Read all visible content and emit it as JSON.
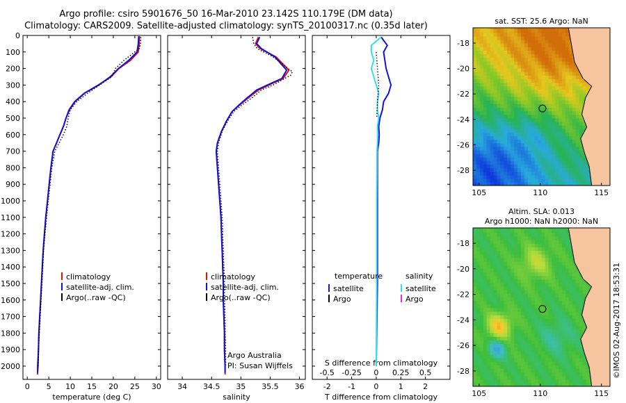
{
  "header": {
    "line1": "Argo profile: csiro 5901676_50 16-Mar-2010 23.142S 110.179E (DM data)",
    "line2": "Climatology: CARS2009. Satellite-adjusted climatology: synTS_20100317.nc (0.35d later)"
  },
  "credit": "©IMOS 02-Aug-2017 18:53:31",
  "colors": {
    "climatology": "#e01010",
    "satellite": "#1010e0",
    "argo": "#000000",
    "sal_sat": "#30e0f0",
    "sal_argo": "#e030e0"
  },
  "chart_data": [
    {
      "id": "temperature",
      "type": "line",
      "xlabel": "temperature (deg C)",
      "ylabel": "",
      "xlim": [
        -1,
        31
      ],
      "ylim": [
        0,
        2080
      ],
      "y_reversed": true,
      "xticks": [
        0,
        5,
        10,
        15,
        20,
        25,
        30
      ],
      "yticks": [
        0,
        100,
        200,
        300,
        400,
        500,
        600,
        700,
        800,
        900,
        1000,
        1100,
        1200,
        1300,
        1400,
        1500,
        1600,
        1700,
        1800,
        1900,
        2000
      ],
      "legend": [
        "climatology",
        "satellite-adj. clim.",
        "Argo(..raw -QC)"
      ],
      "series": [
        {
          "name": "climatology",
          "style": "solid",
          "color": "#e01010",
          "points": [
            [
              26.1,
              5
            ],
            [
              26,
              50
            ],
            [
              25.8,
              100
            ],
            [
              24,
              150
            ],
            [
              21.3,
              200
            ],
            [
              19.5,
              250
            ],
            [
              16.5,
              300
            ],
            [
              13.2,
              350
            ],
            [
              11,
              400
            ],
            [
              9.7,
              450
            ],
            [
              9,
              500
            ],
            [
              8.4,
              550
            ],
            [
              7.6,
              600
            ],
            [
              6.8,
              650
            ],
            [
              6,
              700
            ],
            [
              5.5,
              800
            ],
            [
              5.1,
              900
            ],
            [
              4.7,
              1000
            ],
            [
              4.3,
              1100
            ],
            [
              4,
              1200
            ],
            [
              3.7,
              1300
            ],
            [
              3.5,
              1400
            ],
            [
              3.3,
              1500
            ],
            [
              3.1,
              1600
            ],
            [
              2.9,
              1700
            ],
            [
              2.7,
              1800
            ],
            [
              2.6,
              1900
            ],
            [
              2.4,
              2000
            ],
            [
              2.4,
              2050
            ]
          ]
        },
        {
          "name": "satellite-adj. clim.",
          "style": "solid",
          "color": "#1010e0",
          "points": [
            [
              25.9,
              5
            ],
            [
              25.8,
              50
            ],
            [
              25.5,
              100
            ],
            [
              23.6,
              150
            ],
            [
              21.2,
              200
            ],
            [
              19.3,
              250
            ],
            [
              16.6,
              300
            ],
            [
              13.3,
              350
            ],
            [
              11.1,
              400
            ],
            [
              9.8,
              450
            ],
            [
              9,
              500
            ],
            [
              8.4,
              550
            ],
            [
              7.6,
              600
            ],
            [
              6.8,
              650
            ],
            [
              6,
              700
            ],
            [
              5.5,
              800
            ],
            [
              5.1,
              900
            ],
            [
              4.7,
              1000
            ],
            [
              4.3,
              1100
            ],
            [
              4,
              1200
            ],
            [
              3.7,
              1300
            ],
            [
              3.5,
              1400
            ],
            [
              3.3,
              1500
            ],
            [
              3.1,
              1600
            ],
            [
              2.9,
              1700
            ],
            [
              2.7,
              1800
            ],
            [
              2.6,
              1900
            ],
            [
              2.5,
              2000
            ],
            [
              2.4,
              2040
            ]
          ]
        },
        {
          "name": "Argo(..raw -QC)",
          "style": "dotted",
          "color": "#000000",
          "points": [
            [
              26.4,
              10
            ],
            [
              26.3,
              50
            ],
            [
              26,
              80
            ],
            [
              22.5,
              150
            ],
            [
              20.5,
              200
            ],
            [
              19.6,
              250
            ],
            [
              16.8,
              300
            ],
            [
              14,
              350
            ],
            [
              11.5,
              400
            ],
            [
              10,
              450
            ],
            [
              9.5,
              500
            ],
            [
              9.2,
              550
            ],
            [
              8.4,
              600
            ],
            [
              7.4,
              650
            ],
            [
              6.4,
              700
            ],
            [
              5.7,
              800
            ],
            [
              5.3,
              900
            ],
            [
              4.9,
              1000
            ],
            [
              4.5,
              1100
            ],
            [
              4.1,
              1200
            ],
            [
              3.8,
              1300
            ],
            [
              3.6,
              1400
            ],
            [
              3.4,
              1500
            ],
            [
              3.2,
              1600
            ],
            [
              3,
              1700
            ],
            [
              2.8,
              1800
            ],
            [
              2.6,
              1900
            ],
            [
              2.5,
              2000
            ]
          ]
        }
      ]
    },
    {
      "id": "salinity",
      "type": "line",
      "xlabel": "salinity",
      "ylabel": "",
      "xlim": [
        33.75,
        36.1
      ],
      "ylim": [
        0,
        2080
      ],
      "y_reversed": true,
      "xticks": [
        34,
        34.5,
        35,
        35.5,
        36
      ],
      "legend": [
        "climatology",
        "satellite-adj. clim.",
        "Argo(..raw -QC)"
      ],
      "annotation": [
        "Argo Australia",
        "PI: Susan Wijffels"
      ],
      "series": [
        {
          "name": "climatology",
          "style": "solid",
          "color": "#e01010",
          "points": [
            [
              35.3,
              10
            ],
            [
              35.25,
              50
            ],
            [
              35.33,
              80
            ],
            [
              35.6,
              130
            ],
            [
              35.82,
              210
            ],
            [
              35.72,
              260
            ],
            [
              35.48,
              300
            ],
            [
              35.3,
              330
            ],
            [
              35.12,
              380
            ],
            [
              34.98,
              420
            ],
            [
              34.85,
              460
            ],
            [
              34.75,
              520
            ],
            [
              34.67,
              580
            ],
            [
              34.6,
              650
            ],
            [
              34.58,
              700
            ],
            [
              34.6,
              800
            ],
            [
              34.62,
              900
            ],
            [
              34.64,
              1000
            ],
            [
              34.66,
              1100
            ],
            [
              34.67,
              1200
            ],
            [
              34.68,
              1300
            ],
            [
              34.69,
              1400
            ],
            [
              34.7,
              1500
            ],
            [
              34.7,
              1600
            ],
            [
              34.71,
              1700
            ],
            [
              34.72,
              1800
            ],
            [
              34.72,
              1900
            ],
            [
              34.73,
              2000
            ],
            [
              34.73,
              2050
            ]
          ]
        },
        {
          "name": "satellite-adj. clim.",
          "style": "solid",
          "color": "#1010e0",
          "points": [
            [
              35.32,
              10
            ],
            [
              35.27,
              50
            ],
            [
              35.35,
              80
            ],
            [
              35.58,
              130
            ],
            [
              35.78,
              210
            ],
            [
              35.7,
              260
            ],
            [
              35.45,
              300
            ],
            [
              35.27,
              330
            ],
            [
              35.1,
              380
            ],
            [
              34.97,
              420
            ],
            [
              34.85,
              460
            ],
            [
              34.75,
              520
            ],
            [
              34.67,
              580
            ],
            [
              34.6,
              650
            ],
            [
              34.58,
              700
            ],
            [
              34.6,
              800
            ],
            [
              34.62,
              900
            ],
            [
              34.64,
              1000
            ],
            [
              34.66,
              1100
            ],
            [
              34.67,
              1200
            ],
            [
              34.68,
              1300
            ],
            [
              34.69,
              1400
            ],
            [
              34.7,
              1500
            ],
            [
              34.7,
              1600
            ],
            [
              34.71,
              1700
            ],
            [
              34.72,
              1800
            ],
            [
              34.72,
              1900
            ],
            [
              34.73,
              2000
            ],
            [
              34.73,
              2040
            ]
          ]
        },
        {
          "name": "Argo(..raw -QC)",
          "style": "dotted",
          "color": "#000000",
          "points": [
            [
              35.2,
              10
            ],
            [
              35.22,
              50
            ],
            [
              35.28,
              80
            ],
            [
              35.55,
              130
            ],
            [
              35.88,
              220
            ],
            [
              35.85,
              240
            ],
            [
              35.55,
              300
            ],
            [
              35.35,
              330
            ],
            [
              35.18,
              380
            ],
            [
              35.02,
              420
            ],
            [
              34.88,
              460
            ],
            [
              34.77,
              520
            ],
            [
              34.68,
              580
            ],
            [
              34.62,
              650
            ],
            [
              34.6,
              700
            ],
            [
              34.62,
              800
            ],
            [
              34.64,
              900
            ],
            [
              34.66,
              1000
            ],
            [
              34.68,
              1100
            ],
            [
              34.69,
              1200
            ],
            [
              34.7,
              1300
            ],
            [
              34.71,
              1400
            ],
            [
              34.72,
              1500
            ],
            [
              34.72,
              1600
            ],
            [
              34.73,
              1700
            ],
            [
              34.73,
              1800
            ],
            [
              34.74,
              1900
            ],
            [
              34.74,
              2000
            ]
          ]
        }
      ]
    },
    {
      "id": "differences",
      "type": "line",
      "xlabel": "T difference from climatology",
      "xlabel_top": "S difference from climatology",
      "xlim": [
        -2.6,
        3.0
      ],
      "ylim": [
        0,
        2080
      ],
      "y_reversed": true,
      "xticks": [
        -2,
        -1,
        0,
        1,
        2
      ],
      "xticks_top": [
        -0.5,
        -0.25,
        0,
        0.25,
        0.5
      ],
      "xticks_top_scale": 4,
      "legend_left": {
        "title": "temperature",
        "items": [
          "satellite",
          "Argo"
        ]
      },
      "legend_right": {
        "title": "salinity",
        "items": [
          "satellite",
          "Argo"
        ]
      },
      "series": [
        {
          "name": "temperature satellite",
          "style": "solid",
          "color": "#1010e0",
          "points": [
            [
              0.2,
              10
            ],
            [
              0.45,
              60
            ],
            [
              0.3,
              100
            ],
            [
              0.35,
              150
            ],
            [
              0.4,
              200
            ],
            [
              0.5,
              250
            ],
            [
              0.6,
              300
            ],
            [
              0.5,
              350
            ],
            [
              0.3,
              400
            ],
            [
              0.25,
              450
            ],
            [
              0.15,
              500
            ],
            [
              0.1,
              550
            ],
            [
              0.12,
              600
            ],
            [
              0.1,
              650
            ],
            [
              0.05,
              700
            ],
            [
              0.05,
              800
            ],
            [
              0.05,
              1000
            ],
            [
              0.05,
              1200
            ],
            [
              0.05,
              1500
            ],
            [
              0.0,
              2000
            ]
          ]
        },
        {
          "name": "salinity satellite",
          "style": "solid",
          "color": "#30e0f0",
          "points": [
            [
              0.2,
              10
            ],
            [
              -0.2,
              60
            ],
            [
              -0.2,
              100
            ],
            [
              -0.1,
              150
            ],
            [
              -0.2,
              200
            ],
            [
              -0.1,
              250
            ],
            [
              0.0,
              300
            ],
            [
              0.1,
              350
            ],
            [
              0.05,
              400
            ],
            [
              0.05,
              450
            ],
            [
              0.1,
              500
            ],
            [
              0.05,
              550
            ],
            [
              0.05,
              600
            ],
            [
              0.05,
              650
            ],
            [
              0.03,
              700
            ],
            [
              0.03,
              800
            ],
            [
              0.02,
              1000
            ],
            [
              0.02,
              1500
            ],
            [
              0.0,
              2000
            ]
          ]
        },
        {
          "name": "temperature Argo",
          "style": "dotted",
          "color": "#000000",
          "points": [
            [
              0.0,
              100
            ],
            [
              0.05,
              200
            ],
            [
              0.1,
              300
            ],
            [
              0.05,
              400
            ],
            [
              0.02,
              500
            ]
          ]
        }
      ]
    }
  ],
  "maps": [
    {
      "id": "sst-map",
      "title_lines": [
        "sat. SST: 25.6  Argo: NaN"
      ],
      "xticks": [
        105,
        110,
        115
      ],
      "yticks": [
        -18,
        -20,
        -22,
        -24,
        -26,
        -28
      ],
      "xlim": [
        104.5,
        115.7
      ],
      "ylim": [
        -29.2,
        -16.8
      ],
      "marker": [
        110.18,
        -23.14
      ]
    },
    {
      "id": "sla-map",
      "title_lines": [
        "Altim. SLA: 0.013",
        "Argo h1000: NaN h2000: NaN"
      ],
      "xticks": [
        105,
        110,
        115
      ],
      "yticks": [
        -18,
        -20,
        -22,
        -24,
        -26,
        -28
      ],
      "xlim": [
        104.5,
        115.7
      ],
      "ylim": [
        -29.2,
        -16.8
      ],
      "marker": [
        110.18,
        -23.14
      ]
    }
  ]
}
